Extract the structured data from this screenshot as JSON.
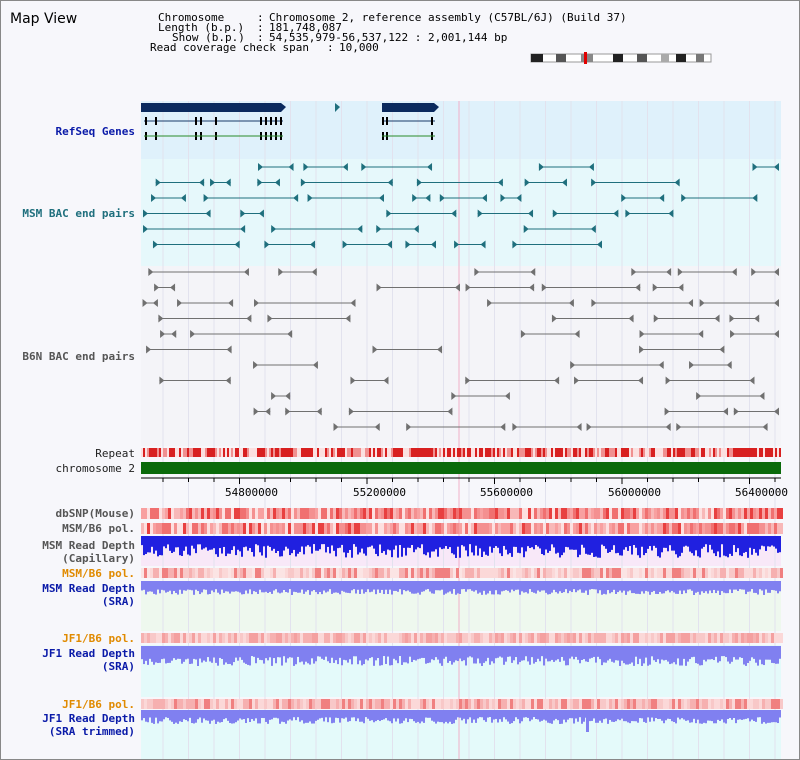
{
  "view_title": "Map View",
  "header": {
    "chromosome_label": "Chromosome",
    "chromosome_value": "Chromosome 2, reference assembly (C57BL/6J) (Build 37)",
    "length_label": "Length (b.p.)",
    "length_value": "181,748,087",
    "show_label": "Show (b.p.)",
    "show_value": "54,535,979-56,537,122 : 2,001,144 bp",
    "span_label": "Read coverage check span",
    "span_value": "10,000"
  },
  "tracks": {
    "refseq": "RefSeq Genes",
    "msm_bac": "MSM BAC end pairs",
    "b6n_bac": "B6N BAC end pairs",
    "repeat": "Repeat",
    "chromosome": "chromosome 2",
    "dbsnp": "dbSNP(Mouse)",
    "msm_b6_pol_1": "MSM/B6 pol.",
    "msm_depth_cap_1": "MSM Read Depth",
    "msm_depth_cap_2": "(Capillary)",
    "msm_b6_pol_2": "MSM/B6 pol.",
    "msm_depth_sra_1": "MSM Read Depth",
    "msm_depth_sra_2": "(SRA)",
    "jf1_b6_pol_1": "JF1/B6 pol.",
    "jf1_depth_sra_1": "JF1 Read Depth",
    "jf1_depth_sra_2": "(SRA)",
    "jf1_b6_pol_2": "JF1/B6 pol.",
    "jf1_depth_trim_1": "JF1 Read Depth",
    "jf1_depth_trim_2": "(SRA trimmed)"
  },
  "axis": {
    "ticks": [
      {
        "label": "54800000",
        "value": 54800000
      },
      {
        "label": "55200000",
        "value": 55200000
      },
      {
        "label": "55600000",
        "value": 55600000
      },
      {
        "label": "56000000",
        "value": 56000000
      },
      {
        "label": "56400000",
        "value": 56400000
      }
    ],
    "start": 54535979,
    "end": 56537122
  },
  "colors": {
    "refseq_bg": "#dff1fb",
    "msm_bg": "#e6f8fb",
    "b6n_bg": "#f4f4f8",
    "gene_dark": "#0a2a5e",
    "msm_feature": "#1f6f7d",
    "b6n_feature": "#707070",
    "chromosome_bar": "#0a6a0a",
    "repeat_red": "#d82020",
    "depth_blue": "#2020e0",
    "depth_light_blue": "#8080f0",
    "depth_bg_pink": "#f8e8f8",
    "depth_bg_green": "#eef8ee",
    "depth_bg_cyan": "#e4fafa"
  }
}
